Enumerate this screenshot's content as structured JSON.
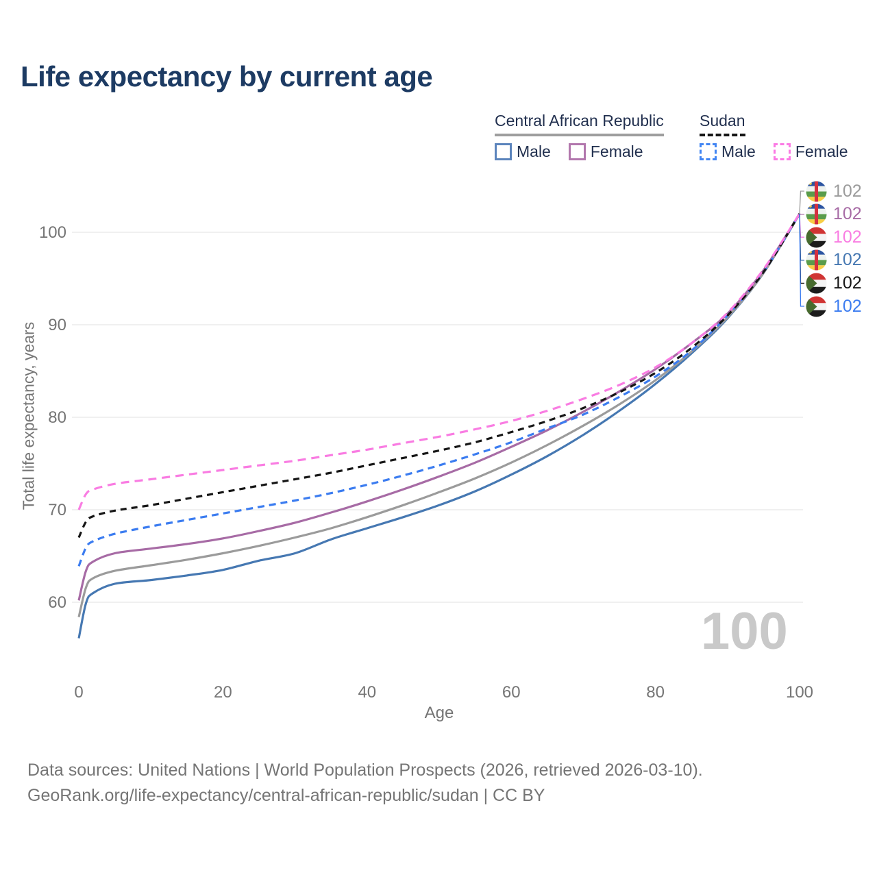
{
  "title": "Life expectancy by current age",
  "colors": {
    "title_text": "#1d3b63",
    "legend_text": "#22304f",
    "axis_text": "#757575",
    "grid": "#ebebeb",
    "watermark": "#c9c9c9"
  },
  "legend": {
    "groups": [
      {
        "country": "Central African Republic",
        "line_style": "solid",
        "underline_color": "#9e9e9e",
        "items": [
          {
            "label": "Male",
            "color": "#5b84bc",
            "dashed": false
          },
          {
            "label": "Female",
            "color": "#b277ad",
            "dashed": false
          }
        ]
      },
      {
        "country": "Sudan",
        "line_style": "dashed",
        "underline_color": "#161616",
        "items": [
          {
            "label": "Male",
            "color": "#4185f3",
            "dashed": true
          },
          {
            "label": "Female",
            "color": "#fb7ae4",
            "dashed": true
          }
        ]
      }
    ]
  },
  "y_axis": {
    "title": "Total life expectancy, years",
    "ticks": [
      100,
      90,
      80,
      70,
      60
    ]
  },
  "x_axis": {
    "title": "Age",
    "ticks": [
      0,
      20,
      40,
      60,
      80,
      100
    ]
  },
  "watermark": "100",
  "end_labels": [
    {
      "series": "car_total",
      "flag": "car",
      "value": "102",
      "color": "#9b9b9b"
    },
    {
      "series": "car_female",
      "flag": "car",
      "value": "102",
      "color": "#a76ba5"
    },
    {
      "series": "sudan_female",
      "flag": "sudan",
      "value": "102",
      "color": "#f97ce2"
    },
    {
      "series": "car_male",
      "flag": "car",
      "value": "102",
      "color": "#4678b2"
    },
    {
      "series": "sudan_total",
      "flag": "sudan",
      "value": "102",
      "color": "#161616"
    },
    {
      "series": "sudan_male",
      "flag": "sudan",
      "value": "102",
      "color": "#3b7cf0"
    }
  ],
  "footer": {
    "line1": "Data sources: United Nations | World Population Prospects (2026, retrieved 2026-03-10).",
    "line2": "GeoRank.org/life-expectancy/central-african-republic/sudan | CC BY"
  },
  "chart_data": {
    "type": "line",
    "title": "Life expectancy by current age",
    "xlabel": "Age",
    "ylabel": "Total life expectancy, years",
    "xlim": [
      0,
      100
    ],
    "ylim": [
      55,
      104
    ],
    "grid": "horizontal",
    "x": [
      0,
      1,
      2,
      5,
      10,
      15,
      20,
      25,
      30,
      35,
      40,
      45,
      50,
      55,
      60,
      65,
      70,
      75,
      80,
      85,
      90,
      95,
      100
    ],
    "series": [
      {
        "id": "car_male",
        "name": "Central African Republic Male",
        "color": "#4678b2",
        "dash": null,
        "values": [
          56.1,
          59.9,
          61.0,
          62.0,
          62.4,
          62.9,
          63.5,
          64.5,
          65.3,
          66.8,
          68.0,
          69.2,
          70.5,
          72.0,
          73.8,
          75.8,
          78.1,
          80.7,
          83.6,
          86.9,
          90.7,
          95.6,
          102
        ]
      },
      {
        "id": "car_total",
        "name": "Central African Republic Total",
        "color": "#9b9b9b",
        "dash": null,
        "values": [
          58.4,
          61.6,
          62.6,
          63.4,
          64.0,
          64.6,
          65.3,
          66.1,
          67.0,
          68.0,
          69.2,
          70.5,
          71.9,
          73.4,
          75.1,
          77.0,
          79.1,
          81.4,
          84.0,
          87.1,
          90.8,
          95.6,
          102
        ]
      },
      {
        "id": "car_female",
        "name": "Central African Republic Female",
        "color": "#a76ba5",
        "dash": null,
        "values": [
          60.2,
          63.4,
          64.4,
          65.3,
          65.8,
          66.3,
          66.9,
          67.7,
          68.6,
          69.7,
          70.9,
          72.2,
          73.6,
          75.1,
          76.8,
          78.6,
          80.6,
          82.8,
          85.2,
          88.0,
          91.2,
          95.9,
          102
        ]
      },
      {
        "id": "sudan_male",
        "name": "Sudan Male",
        "color": "#3b7cf0",
        "dash": "10 7",
        "values": [
          63.9,
          65.9,
          66.6,
          67.4,
          68.2,
          68.9,
          69.6,
          70.3,
          71.0,
          71.8,
          72.7,
          73.7,
          74.8,
          76.0,
          77.3,
          78.8,
          80.3,
          82.2,
          84.4,
          87.2,
          91.0,
          95.7,
          102
        ]
      },
      {
        "id": "sudan_total",
        "name": "Sudan Total",
        "color": "#161616",
        "dash": "9 7",
        "values": [
          67.0,
          68.7,
          69.3,
          69.9,
          70.5,
          71.2,
          71.9,
          72.6,
          73.3,
          74.0,
          74.8,
          75.6,
          76.4,
          77.3,
          78.4,
          79.6,
          81.0,
          82.7,
          84.8,
          87.5,
          91.0,
          95.7,
          102
        ]
      },
      {
        "id": "sudan_female",
        "name": "Sudan Female",
        "color": "#f97ce2",
        "dash": "12 8",
        "values": [
          70.0,
          71.7,
          72.2,
          72.8,
          73.3,
          73.8,
          74.3,
          74.8,
          75.3,
          75.9,
          76.5,
          77.2,
          77.9,
          78.7,
          79.6,
          80.7,
          82.0,
          83.5,
          85.4,
          88.0,
          91.3,
          96.0,
          102
        ]
      }
    ]
  }
}
